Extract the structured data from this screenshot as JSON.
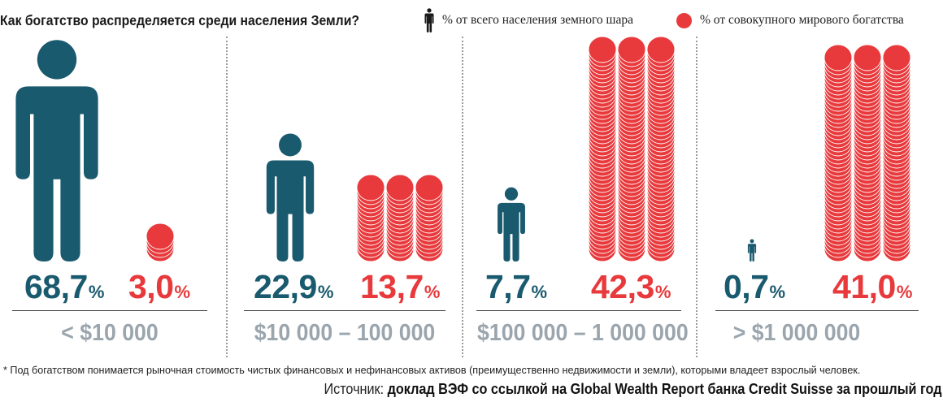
{
  "title": "Как богатство распределяется среди населения Земли?",
  "legend": {
    "population": "% от всего населения земного шара",
    "wealth": "% от совокупного мирового богатства"
  },
  "colors": {
    "population": "#1a5a6e",
    "wealth": "#e8393c",
    "range": "#9aa5ad"
  },
  "icons": {
    "population": "person-icon",
    "wealth": "coin-stack-icon"
  },
  "groups": [
    {
      "range": "< $10 000",
      "population": "68,7",
      "wealth": "3,0"
    },
    {
      "range": "$10 000 – 100 000",
      "population": "22,9",
      "wealth": "13,7"
    },
    {
      "range": "$100 000 – 1 000 000",
      "population": "7,7",
      "wealth": "42,3"
    },
    {
      "range": "> $1 000 000",
      "population": "0,7",
      "wealth": "41,0"
    }
  ],
  "pct_sign": "%",
  "chart_data": {
    "type": "bar",
    "title": "Как богатство распределяется среди населения Земли?",
    "categories": [
      "< $10 000",
      "$10 000 – 100 000",
      "$100 000 – 1 000 000",
      "> $1 000 000"
    ],
    "series": [
      {
        "name": "% от всего населения земного шара",
        "values": [
          68.7,
          22.9,
          7.7,
          0.7
        ]
      },
      {
        "name": "% от совокупного мирового богатства",
        "values": [
          3.0,
          13.7,
          42.3,
          41.0
        ]
      }
    ],
    "legend": "top-right"
  },
  "footnote": "* Под богатством понимается рыночная стоимость чистых финансовых и нефинансовых активов (преимущественно недвижимости и земли), которыми владеет взрослый человек.",
  "source": {
    "label": "Источник:",
    "text": "доклад ВЭФ со ссылкой на Global Wealth Report банка Credit Suisse за прошлый год"
  }
}
